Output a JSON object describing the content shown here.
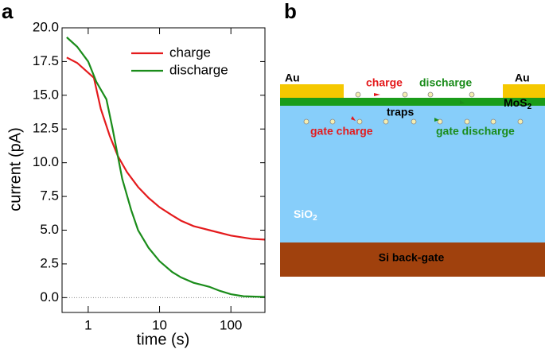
{
  "chart_data": {
    "type": "line",
    "panel_label": "a",
    "x_label": "time (s)",
    "y_label": "current (pA)",
    "xlog": true,
    "xlim": [
      0.43,
      300
    ],
    "xticks": [
      1,
      10,
      100
    ],
    "ylim": [
      -1.1,
      20
    ],
    "yticks": [
      {
        "value": 0,
        "label": "0.0"
      },
      2.5,
      {
        "value": 5,
        "label": "5.0"
      },
      7.5,
      {
        "value": 10,
        "label": "10.0"
      },
      12.5,
      {
        "value": 15,
        "label": "15.0"
      },
      17.5,
      {
        "value": 20,
        "label": "20.0"
      }
    ],
    "hline": 0,
    "legend": "upper right",
    "series": [
      {
        "name": "charge",
        "color": "#e41a1c",
        "x": [
          0.5,
          0.7,
          1.2,
          1.5,
          2,
          2.6,
          3.5,
          5,
          7,
          10,
          15,
          20,
          30,
          50,
          100,
          200,
          300
        ],
        "values": [
          17.8,
          17.4,
          16.3,
          14,
          12,
          10.5,
          9.3,
          8.2,
          7.4,
          6.7,
          6.1,
          5.7,
          5.3,
          5.0,
          4.6,
          4.35,
          4.3
        ]
      },
      {
        "name": "discharge",
        "color": "#1a8c1a",
        "x": [
          0.5,
          0.7,
          1,
          1.3,
          1.8,
          2.2,
          2.6,
          3,
          4,
          5,
          7,
          10,
          15,
          20,
          30,
          50,
          70,
          100,
          150,
          300
        ],
        "values": [
          19.3,
          18.6,
          17.5,
          16,
          14.7,
          12.5,
          10.5,
          8.8,
          6.5,
          5,
          3.7,
          2.7,
          1.9,
          1.5,
          1.1,
          0.8,
          0.5,
          0.25,
          0.1,
          0.05
        ]
      }
    ]
  },
  "diagram": {
    "panel_label": "b",
    "au_left": "Au",
    "au_right": "Au",
    "charge": "charge",
    "discharge": "discharge",
    "mos2": {
      "text": "MoS",
      "sub": "2"
    },
    "traps": "traps",
    "gate_charge": "gate charge",
    "gate_discharge": "gate discharge",
    "sio2": {
      "text": "SiO",
      "sub": "2"
    },
    "si": "Si back-gate"
  }
}
